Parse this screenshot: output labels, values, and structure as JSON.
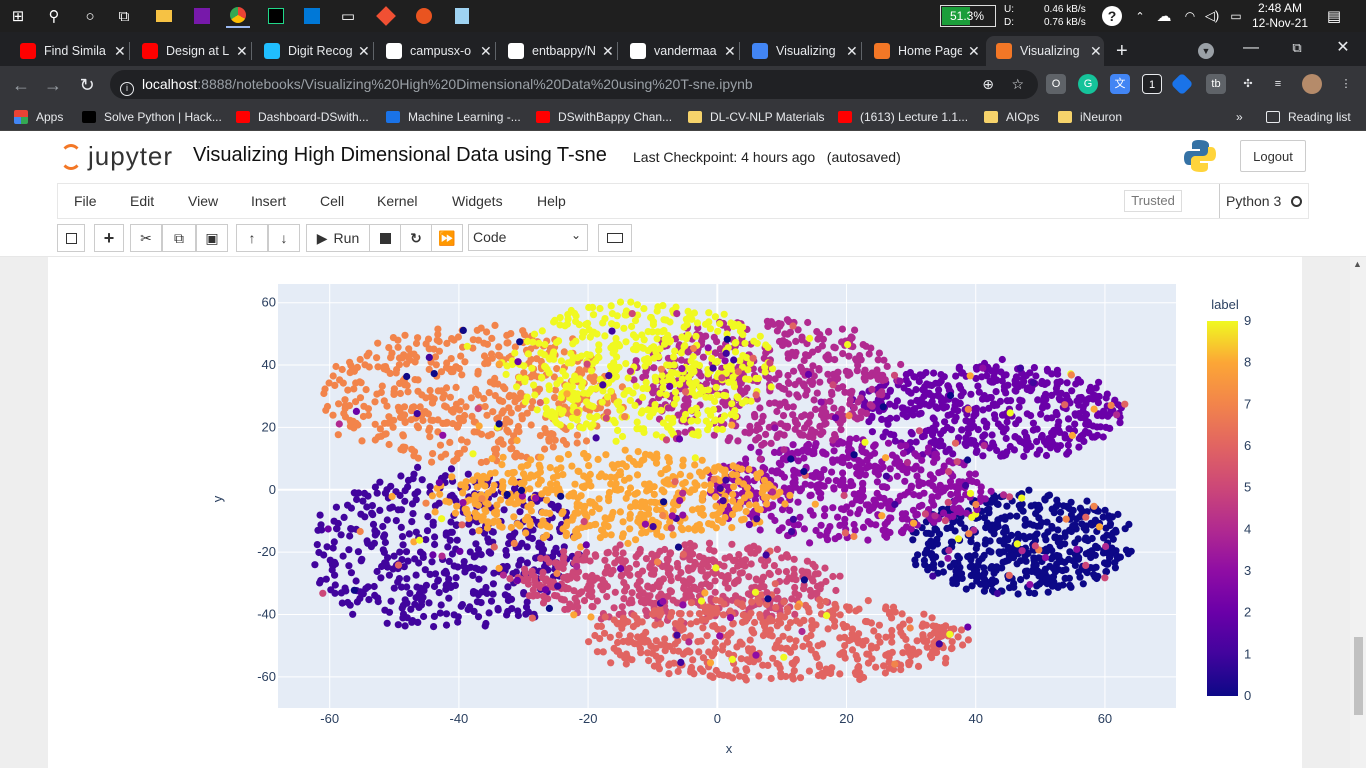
{
  "taskbar": {
    "battery_percent": "51.3%",
    "battery_level": 0.513,
    "net_up_label": "U:",
    "net_down_label": "D:",
    "net_up": "0.46 kB/s",
    "net_down": "0.76 kB/s",
    "time": "2:48 AM",
    "date": "12-Nov-21"
  },
  "tabs": [
    {
      "title": "Find Simila",
      "icon": "youtube-icon",
      "color": "#ff0000"
    },
    {
      "title": "Design at L",
      "icon": "youtube-icon",
      "color": "#ff0000"
    },
    {
      "title": "Digit Recog",
      "icon": "kaggle-icon",
      "color": "#20beff"
    },
    {
      "title": "campusx-o",
      "icon": "github-icon",
      "color": "#ffffff"
    },
    {
      "title": "entbappy/N",
      "icon": "github-icon",
      "color": "#ffffff"
    },
    {
      "title": "vandermaa",
      "icon": "jmlr-icon",
      "color": "#ffffff"
    },
    {
      "title": "Visualizing",
      "icon": "google-icon",
      "color": "#4285f4"
    },
    {
      "title": "Home Page",
      "icon": "jupyter-icon",
      "color": "#f37726"
    },
    {
      "title": "Visualizing",
      "icon": "notebook-icon",
      "color": "#f37726",
      "active": true
    }
  ],
  "address": {
    "host": "localhost",
    "path": ":8888/notebooks/Visualizing%20High%20Dimensional%20Data%20using%20T-sne.ipynb"
  },
  "bookmarks": {
    "apps_label": "Apps",
    "items": [
      "Solve Python | Hack...",
      "Dashboard-DSwith...",
      "Machine Learning -...",
      "DSwithBappy Chan...",
      "DL-CV-NLP Materials",
      "(1613) Lecture 1.1...",
      "AIOps",
      "iNeuron"
    ],
    "reading_list": "Reading list",
    "more": "»"
  },
  "jupyter": {
    "logo_text": "jupyter",
    "notebook_title": "Visualizing High Dimensional Data using T-sne",
    "checkpoint": "Last Checkpoint: 4 hours ago",
    "autosaved": "(autosaved)",
    "logout_label": "Logout",
    "menus": [
      "File",
      "Edit",
      "View",
      "Insert",
      "Cell",
      "Kernel",
      "Widgets",
      "Help"
    ],
    "trusted_label": "Trusted",
    "kernel_name": "Python 3",
    "run_label": "Run",
    "cell_type": "Code"
  },
  "chart_data": {
    "type": "scatter",
    "xlabel": "x",
    "ylabel": "y",
    "xlim": [
      -68,
      71
    ],
    "ylim": [
      -70,
      66
    ],
    "x_ticks": [
      -60,
      -40,
      -20,
      0,
      20,
      40,
      60
    ],
    "y_ticks": [
      60,
      40,
      20,
      0,
      -20,
      -40,
      -60
    ],
    "colorbar": {
      "title": "label",
      "range": [
        0,
        9
      ],
      "ticks": [
        9,
        8,
        7,
        6,
        5,
        4,
        3,
        2,
        1,
        0
      ]
    },
    "colors": {
      "0": "#0d0887",
      "1": "#41049d",
      "2": "#6a00a8",
      "3": "#8f0da4",
      "4": "#b12a90",
      "5": "#cc4778",
      "6": "#e16462",
      "7": "#f2844b",
      "8": "#fca636",
      "9": "#f0f921"
    },
    "plot_bg": "#e5ecf6",
    "clusters": [
      {
        "label": 0,
        "cx": 47,
        "cy": -17,
        "rx": 17,
        "ry": 16
      },
      {
        "label": 1,
        "cx": -42,
        "cy": -20,
        "rx": 21,
        "ry": 26
      },
      {
        "label": 2,
        "cx": 42,
        "cy": 25,
        "rx": 21,
        "ry": 15
      },
      {
        "label": 3,
        "cx": 20,
        "cy": 0,
        "rx": 22,
        "ry": 16
      },
      {
        "label": 4,
        "cx": 7,
        "cy": 35,
        "rx": 20,
        "ry": 20
      },
      {
        "label": 5,
        "cx": -6,
        "cy": -30,
        "rx": 25,
        "ry": 13
      },
      {
        "label": 6,
        "cx": 9,
        "cy": -48,
        "rx": 30,
        "ry": 13
      },
      {
        "label": 7,
        "cx": -38,
        "cy": 30,
        "rx": 23,
        "ry": 22
      },
      {
        "label": 8,
        "cx": -17,
        "cy": -2,
        "rx": 27,
        "ry": 14
      },
      {
        "label": 9,
        "cx": -12,
        "cy": 38,
        "rx": 21,
        "ry": 22
      }
    ]
  }
}
